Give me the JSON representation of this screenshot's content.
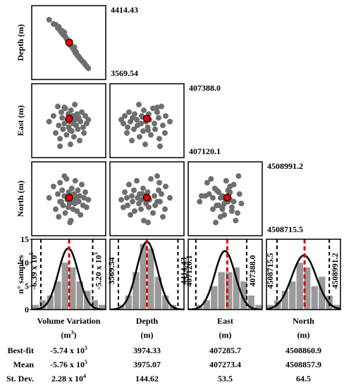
{
  "figure": {
    "row_labels": [
      "Depth (m)",
      "East (m)",
      "North (m)"
    ],
    "hist_label": "n° samples",
    "hist_ylim": [
      0,
      15
    ],
    "hist_yticks": [
      0,
      5,
      10,
      15
    ],
    "params": [
      {
        "name": "Volume Variation",
        "unit": {
          "text": "(m",
          "sup": "3",
          "close": ")"
        },
        "xlim": [
          -660000,
          -490000
        ],
        "intervals": [
          {
            "value": -639000,
            "label": "-6.39 x 10",
            "sup": "5"
          },
          {
            "value": -520000,
            "label": "-5.20 x 10",
            "sup": "5"
          }
        ],
        "counts": [
          1,
          2,
          3,
          6,
          10,
          9,
          6,
          4,
          2,
          1
        ],
        "samples": [
          -620000,
          -610000,
          -605000,
          -600000,
          -598000,
          -595000,
          -592000,
          -590000,
          -588000,
          -585000,
          -583000,
          -580000,
          -578000,
          -576000,
          -575000,
          -573000,
          -571000,
          -570000,
          -568000,
          -566000,
          -565000,
          -563000,
          -561000,
          -560000,
          -558000,
          -556000,
          -554000,
          -552000,
          -550000,
          -548000,
          -545000,
          -542000,
          -540000,
          -537000,
          -534000,
          -530000,
          -585000,
          -572000,
          -562000,
          -595000
        ],
        "best_fit": {
          "value": -574000,
          "label": "-5.74 x 10",
          "sup": "5"
        },
        "mean": {
          "value": -576000,
          "label": "-5.76 x 10",
          "sup": "5"
        },
        "std": {
          "value": 22800,
          "label": "2.28 x 10",
          "sup": "4"
        }
      },
      {
        "name": "Depth",
        "unit": "(m)",
        "xlim": [
          3450,
          4500
        ],
        "intervals": [
          3569.54,
          4414.43
        ],
        "counts": [
          0,
          1,
          3,
          8,
          14,
          13,
          7,
          3,
          1,
          0
        ],
        "samples": [
          4300,
          4240,
          4230,
          4180,
          4200,
          4150,
          4120,
          4140,
          4090,
          4080,
          4060,
          4030,
          4010,
          4000,
          3985,
          3960,
          3950,
          3930,
          3920,
          3900,
          3890,
          3870,
          3860,
          3830,
          3840,
          3800,
          3790,
          3770,
          3760,
          3740,
          3720,
          3700,
          3690,
          3660,
          3640,
          3610,
          4120,
          3990,
          3910,
          4160
        ],
        "best_fit": 3974.33,
        "mean": 3975.07,
        "std": 144.62
      },
      {
        "name": "East",
        "unit": "(m)",
        "xlim": [
          407080,
          407470
        ],
        "intervals": [
          407120.1,
          {
            "value": 407388.0,
            "label": "407388.0"
          }
        ],
        "counts": [
          0,
          1,
          2,
          5,
          8,
          8,
          9,
          6,
          3,
          1
        ],
        "samples": [
          407270,
          407300,
          407210,
          407350,
          407250,
          407180,
          407320,
          407290,
          407230,
          407260,
          407340,
          407200,
          407280,
          407310,
          407240,
          407270,
          407150,
          407330,
          407220,
          407300,
          407260,
          407190,
          407360,
          407280,
          407250,
          407310,
          407230,
          407290,
          407170,
          407270,
          407320,
          407240,
          407210,
          407300,
          407260,
          407280,
          407345,
          407225,
          407295,
          407140
        ],
        "best_fit": 407285.7,
        "mean": 407273.4,
        "std": 53.5
      },
      {
        "name": "North",
        "unit": "(m)",
        "xlim": [
          4508660,
          4509050
        ],
        "intervals": [
          4508715.5,
          4508991.2
        ],
        "counts": [
          1,
          2,
          4,
          6,
          10,
          9,
          5,
          7,
          3,
          1
        ],
        "samples": [
          4508860,
          4508920,
          4508800,
          4508880,
          4508760,
          4508940,
          4508840,
          4508900,
          4508820,
          4508870,
          4508780,
          4508960,
          4508850,
          4508810,
          4508890,
          4508830,
          4508870,
          4508740,
          4508910,
          4508850,
          4508800,
          4508880,
          4508830,
          4508950,
          4508860,
          4508790,
          4508900,
          4508840,
          4508870,
          4508770,
          4508930,
          4508820,
          4508860,
          4508890,
          4508810,
          4508850,
          4508975,
          4508730,
          4508880,
          4508840
        ],
        "best_fit": 4508860.9,
        "mean": 4508857.9,
        "std": 64.5
      }
    ],
    "row_names": [
      "Best-fit",
      "Mean",
      "St. Dev."
    ]
  }
}
